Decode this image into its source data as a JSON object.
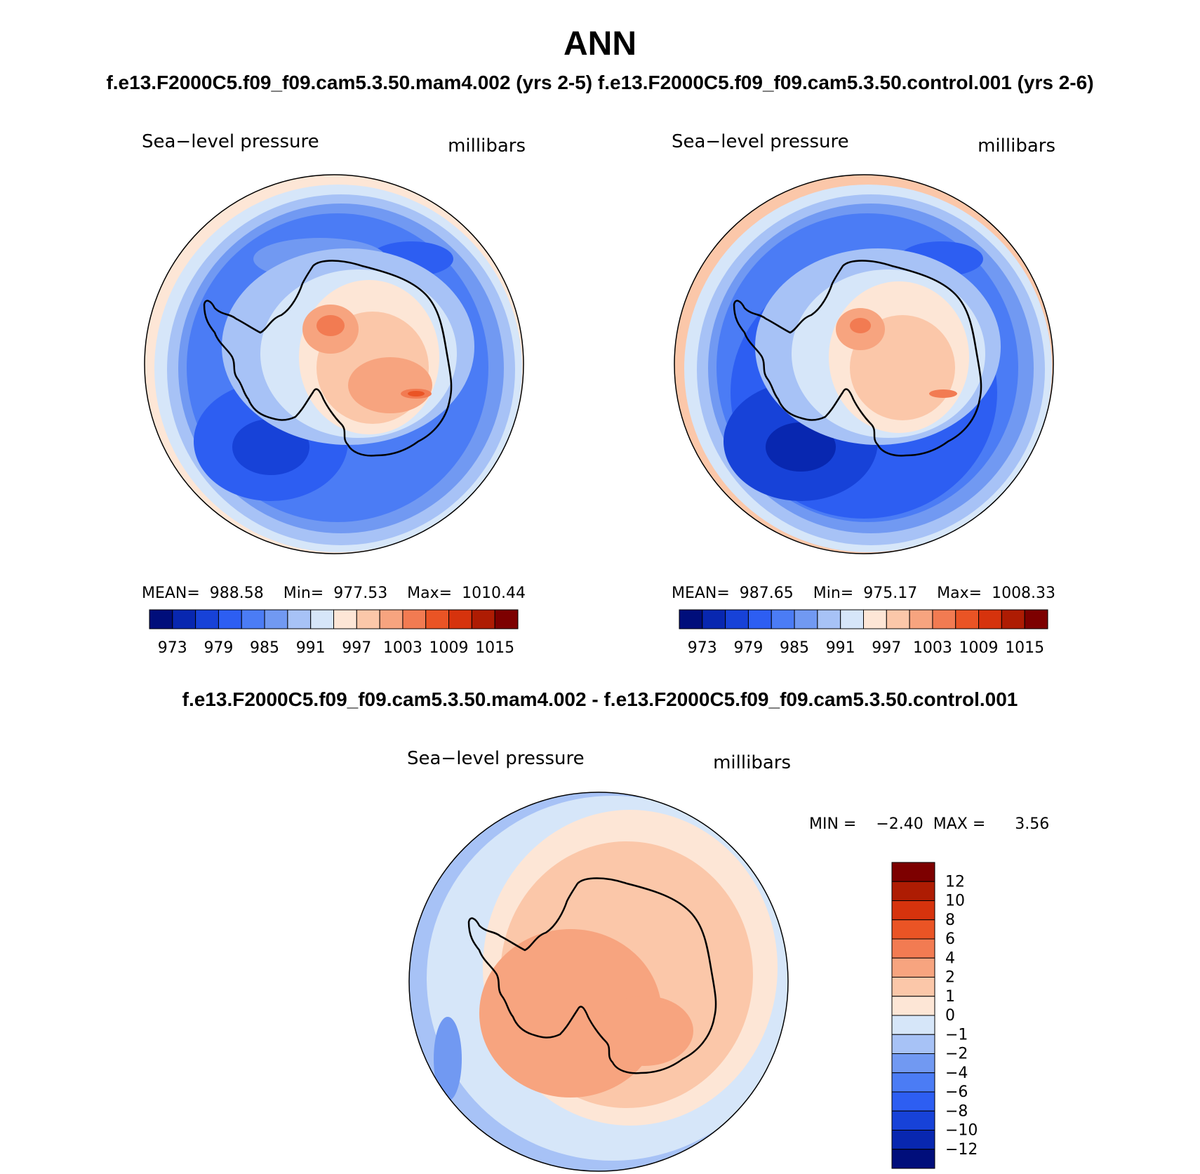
{
  "chart_data": {
    "type": "polar-contour-map",
    "title": "ANN",
    "subtitle": "f.e13.F2000C5.f09_f09.cam5.3.50.mam4.002 (yrs 2-5) f.e13.F2000C5.f09_f09.cam5.3.50.control.001 (yrs 2-6)",
    "diff_title": "f.e13.F2000C5.f09_f09.cam5.3.50.mam4.002 - f.e13.F2000C5.f09_f09.cam5.3.50.control.001",
    "panels": [
      {
        "id": "test",
        "left_label": "Sea−level pressure",
        "right_label": "millibars",
        "stats_text": "MEAN=  988.58    Min=  977.53    Max=  1010.44",
        "mean": 988.58,
        "min": 977.53,
        "max": 1010.44,
        "colorbar": {
          "orientation": "horizontal",
          "ticks": [
            "973",
            "979",
            "985",
            "991",
            "997",
            "1003",
            "1009",
            "1015"
          ],
          "levels": [
            973,
            976,
            979,
            982,
            985,
            988,
            991,
            994,
            997,
            1000,
            1003,
            1006,
            1009,
            1012,
            1015
          ],
          "colors": [
            "#000e7b",
            "#0827b0",
            "#1742d8",
            "#2d5ef2",
            "#4b7cf5",
            "#7199f2",
            "#a7c2f6",
            "#d6e6f9",
            "#fde6d6",
            "#fbc7a9",
            "#f7a47f",
            "#f27b52",
            "#ea5425",
            "#d6330d",
            "#ae1c03",
            "#7d0000"
          ]
        }
      },
      {
        "id": "control",
        "left_label": "Sea−level pressure",
        "right_label": "millibars",
        "stats_text": "MEAN=  987.65    Min=  975.17    Max=  1008.33",
        "mean": 987.65,
        "min": 975.17,
        "max": 1008.33,
        "colorbar": {
          "orientation": "horizontal",
          "ticks": [
            "973",
            "979",
            "985",
            "991",
            "997",
            "1003",
            "1009",
            "1015"
          ],
          "levels": [
            973,
            976,
            979,
            982,
            985,
            988,
            991,
            994,
            997,
            1000,
            1003,
            1006,
            1009,
            1012,
            1015
          ],
          "colors": [
            "#000e7b",
            "#0827b0",
            "#1742d8",
            "#2d5ef2",
            "#4b7cf5",
            "#7199f2",
            "#a7c2f6",
            "#d6e6f9",
            "#fde6d6",
            "#fbc7a9",
            "#f7a47f",
            "#f27b52",
            "#ea5425",
            "#d6330d",
            "#ae1c03",
            "#7d0000"
          ]
        }
      },
      {
        "id": "difference",
        "left_label": "Sea−level pressure",
        "right_label": "millibars",
        "stats_text": "MIN =    −2.40  MAX =      3.56",
        "min": -2.4,
        "max": 3.56,
        "colorbar": {
          "orientation": "vertical",
          "ticks": [
            "12",
            "10",
            "8",
            "6",
            "4",
            "2",
            "1",
            "0",
            "−1",
            "−2",
            "−4",
            "−6",
            "−8",
            "−10",
            "−12"
          ],
          "levels": [
            12,
            10,
            8,
            6,
            4,
            2,
            1,
            0,
            -1,
            -2,
            -4,
            -6,
            -8,
            -10,
            -12
          ],
          "colors_top_to_bottom": [
            "#7d0000",
            "#ae1c03",
            "#d6330d",
            "#ea5425",
            "#f27b52",
            "#f7a47f",
            "#fbc7a9",
            "#fde6d6",
            "#d6e6f9",
            "#a7c2f6",
            "#7199f2",
            "#4b7cf5",
            "#2d5ef2",
            "#1742d8",
            "#0827b0",
            "#000e7b"
          ]
        }
      }
    ]
  }
}
